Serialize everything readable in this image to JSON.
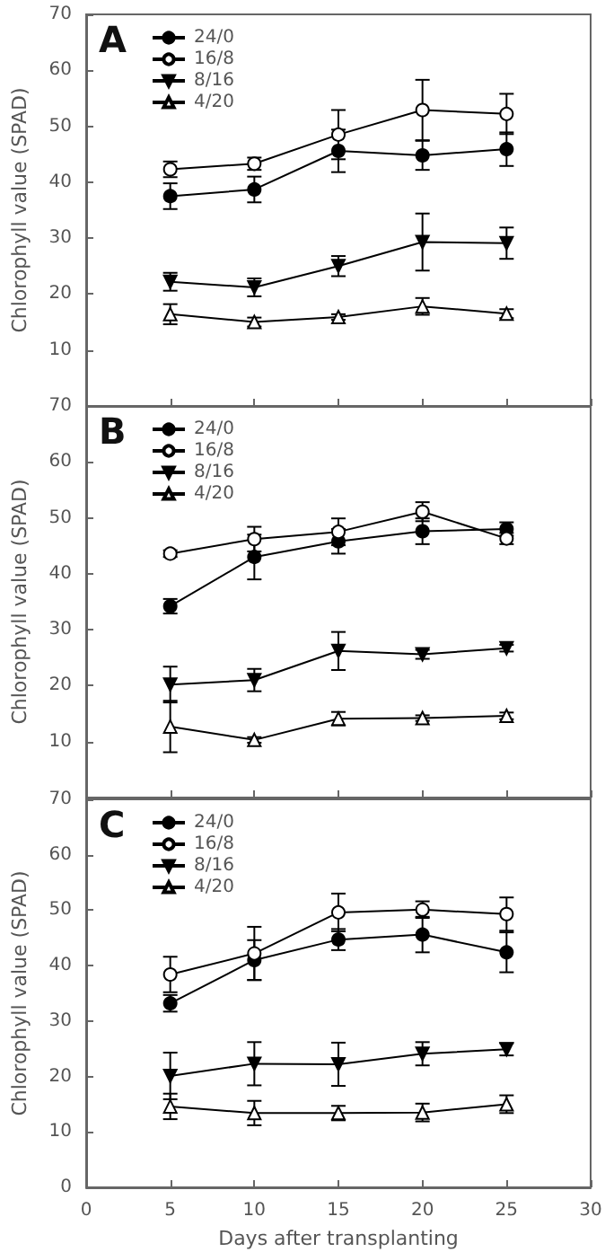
{
  "chart_data": [
    {
      "type": "line",
      "annotations": [
        "A"
      ],
      "ylabel": "Chlorophyll value (SPAD)",
      "x": [
        5,
        10,
        15,
        20,
        25
      ],
      "xlim": [
        0,
        30
      ],
      "xticks": [
        0,
        5,
        10,
        15,
        20,
        25,
        30
      ],
      "ylim": [
        0,
        70
      ],
      "yticks": [
        {
          "value": 0,
          "label": null
        },
        10,
        20,
        30,
        40,
        50,
        60,
        70
      ],
      "tick_labels": "y",
      "grid": false,
      "legend": "top left",
      "line_style": "solid",
      "series": [
        {
          "name": "24/0",
          "color": "#000000",
          "marker": "circle",
          "values": [
            37.5,
            38.7,
            45.6,
            44.8,
            45.9
          ],
          "errors": [
            2.3,
            2.3,
            3.8,
            2.6,
            3
          ]
        },
        {
          "name": "16/8",
          "color": "#000000",
          "marker": "circle",
          "values": [
            42.3,
            43.3,
            48.5,
            52.9,
            52.2
          ],
          "errors": [
            1.4,
            1.1,
            4.4,
            5.4,
            3.6
          ]
        },
        {
          "name": "8/16",
          "color": "#000000",
          "marker": "triangle",
          "values": [
            22.2,
            21.2,
            25.0,
            29.3,
            29.1
          ],
          "errors": [
            1.6,
            1.6,
            1.8,
            5.1,
            2.8
          ]
        },
        {
          "name": "4/20",
          "color": "#000000",
          "marker": "triangle",
          "values": [
            16.4,
            15.0,
            15.9,
            17.8,
            16.5
          ],
          "errors": [
            1.8,
            0.8,
            0.5,
            1.5,
            0.8
          ]
        }
      ]
    },
    {
      "type": "line",
      "annotations": [
        "B"
      ],
      "ylabel": "Chlorophyll value (SPAD)",
      "x": [
        5,
        10,
        15,
        20,
        25
      ],
      "xlim": [
        0,
        30
      ],
      "xticks": [
        0,
        5,
        10,
        15,
        20,
        25,
        30
      ],
      "ylim": [
        0,
        70
      ],
      "yticks": [
        {
          "value": 0,
          "label": null
        },
        10,
        20,
        30,
        40,
        50,
        60,
        70
      ],
      "tick_labels": "y",
      "grid": false,
      "legend": "top left",
      "line_style": "solid",
      "series": [
        {
          "name": "24/0",
          "color": "#000000",
          "marker": "circle",
          "values": [
            34.2,
            43.0,
            45.8,
            47.6,
            48.0
          ],
          "errors": [
            1.3,
            4,
            2.2,
            2.3,
            1.2
          ]
        },
        {
          "name": "16/8",
          "color": "#000000",
          "marker": "circle",
          "values": [
            43.6,
            46.2,
            47.5,
            51.1,
            46.3
          ],
          "errors": [
            0.6,
            2.2,
            2.4,
            1.7,
            1
          ]
        },
        {
          "name": "8/16",
          "color": "#000000",
          "marker": "triangle",
          "values": [
            20.2,
            21.0,
            26.2,
            25.6,
            26.7
          ],
          "errors": [
            3.2,
            2,
            3.4,
            0.8,
            0.6
          ]
        },
        {
          "name": "4/20",
          "color": "#000000",
          "marker": "triangle",
          "values": [
            12.7,
            10.3,
            14.1,
            14.2,
            14.6
          ],
          "errors": [
            4.6,
            0.5,
            1.2,
            0.5,
            0.6
          ]
        }
      ]
    },
    {
      "type": "line",
      "annotations": [
        "C"
      ],
      "xlabel": "Days after transplanting",
      "ylabel": "Chlorophyll value (SPAD)",
      "x": [
        5,
        10,
        15,
        20,
        25
      ],
      "xlim": [
        0,
        30
      ],
      "xticks": [
        0,
        5,
        10,
        15,
        20,
        25,
        30
      ],
      "ylim": [
        0,
        70
      ],
      "yticks": [
        0,
        10,
        20,
        30,
        40,
        50,
        60,
        70
      ],
      "grid": false,
      "legend": "top left",
      "line_style": "solid",
      "series": [
        {
          "name": "24/0",
          "color": "#000000",
          "marker": "circle",
          "values": [
            33.2,
            41.0,
            44.7,
            45.6,
            42.4
          ],
          "errors": [
            1.5,
            3.6,
            1.9,
            3.2,
            3.6
          ]
        },
        {
          "name": "16/8",
          "color": "#000000",
          "marker": "circle",
          "values": [
            38.4,
            42.2,
            49.6,
            50.1,
            49.3
          ],
          "errors": [
            3.2,
            4.8,
            3.4,
            1.5,
            3
          ]
        },
        {
          "name": "8/16",
          "color": "#000000",
          "marker": "triangle",
          "values": [
            20.1,
            22.3,
            22.2,
            24.1,
            24.9
          ],
          "errors": [
            4.2,
            3.9,
            3.9,
            2.1,
            1.1
          ]
        },
        {
          "name": "4/20",
          "color": "#000000",
          "marker": "triangle",
          "values": [
            14.6,
            13.4,
            13.4,
            13.5,
            15.0
          ],
          "errors": [
            2.3,
            2.2,
            1.3,
            1.6,
            1.6
          ]
        }
      ]
    }
  ]
}
